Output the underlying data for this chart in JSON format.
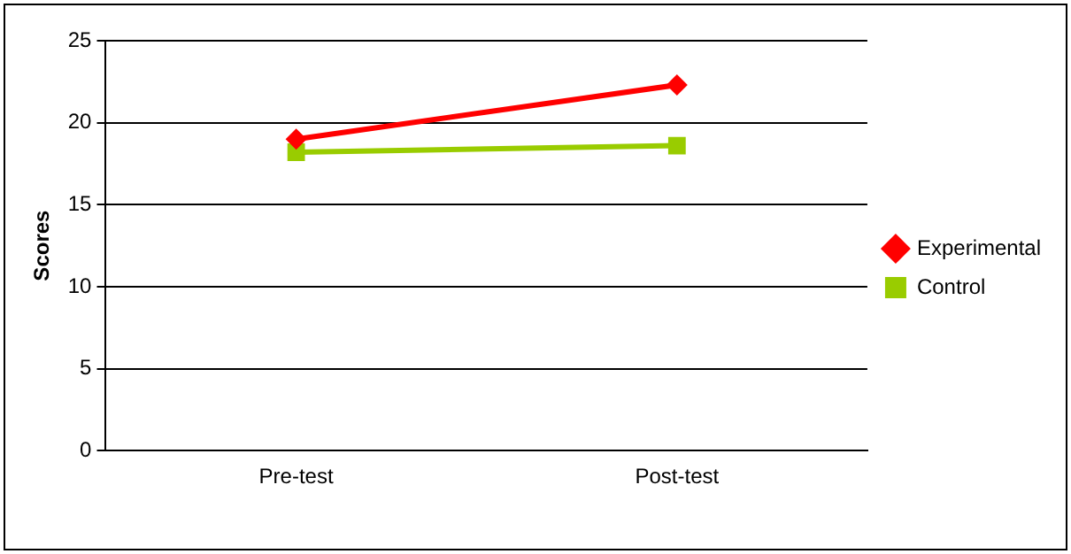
{
  "chart_data": {
    "type": "line",
    "ylabel": "Scores",
    "categories": [
      "Pre-test",
      "Post-test"
    ],
    "series": [
      {
        "name": "Experimental",
        "color": "#ff0000",
        "values": [
          19.0,
          22.3
        ],
        "marker": "diamond"
      },
      {
        "name": "Control",
        "color": "#99cc00",
        "values": [
          18.2,
          18.6
        ],
        "marker": "square"
      }
    ],
    "ylim": [
      0,
      25
    ],
    "yticks": [
      0,
      5,
      10,
      15,
      20,
      25
    ],
    "grid": "y",
    "legend": "right",
    "line_style": "solid"
  }
}
